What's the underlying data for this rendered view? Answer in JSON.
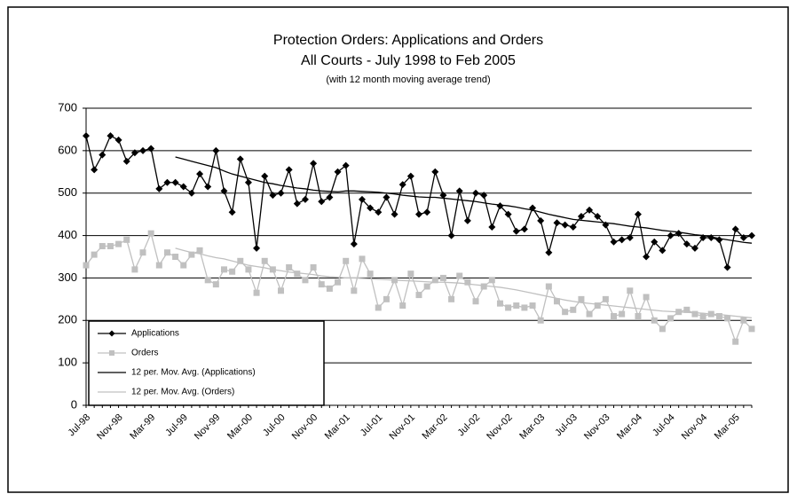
{
  "chart_data": {
    "type": "line",
    "title": "Protection Orders: Applications and Orders",
    "subtitle": "All Courts - July 1998 to Feb 2005",
    "note": "(with 12 month moving average trend)",
    "categories": [
      "Jul-98",
      null,
      null,
      null,
      "Nov-98",
      null,
      null,
      null,
      "Mar-99",
      null,
      null,
      null,
      "Jul-99",
      null,
      null,
      null,
      "Nov-99",
      null,
      null,
      null,
      "Mar-00",
      null,
      null,
      null,
      "Jul-00",
      null,
      null,
      null,
      "Nov-00",
      null,
      null,
      null,
      "Mar-01",
      null,
      null,
      null,
      "Jul-01",
      null,
      null,
      null,
      "Nov-01",
      null,
      null,
      null,
      "Mar-02",
      null,
      null,
      null,
      "Jul-02",
      null,
      null,
      null,
      "Nov-02",
      null,
      null,
      null,
      "Mar-03",
      null,
      null,
      null,
      "Jul-03",
      null,
      null,
      null,
      "Nov-03",
      null,
      null,
      null,
      "Mar-04",
      null,
      null,
      null,
      "Jul-04",
      null,
      null,
      null,
      "Nov-04",
      null,
      null,
      null,
      "Mar-05",
      null,
      null
    ],
    "series": [
      {
        "name": "Applications",
        "color": "#000000",
        "marker": "diamond",
        "values": [
          635,
          555,
          590,
          635,
          625,
          575,
          595,
          600,
          605,
          510,
          525,
          525,
          515,
          500,
          545,
          515,
          600,
          505,
          455,
          580,
          525,
          370,
          540,
          495,
          500,
          555,
          475,
          485,
          570,
          480,
          490,
          550,
          565,
          380,
          485,
          465,
          455,
          490,
          450,
          520,
          540,
          450,
          455,
          550,
          495,
          400,
          505,
          435,
          500,
          495,
          420,
          470,
          450,
          410,
          415,
          465,
          435,
          360,
          430,
          425,
          420,
          445,
          460,
          445,
          425,
          385,
          390,
          395,
          450,
          350,
          385,
          365,
          400,
          405,
          380,
          370,
          395,
          395,
          390,
          325,
          415,
          395,
          400
        ]
      },
      {
        "name": "Orders",
        "color": "#c0c0c0",
        "marker": "square",
        "values": [
          330,
          355,
          375,
          375,
          380,
          390,
          320,
          360,
          405,
          330,
          360,
          350,
          330,
          355,
          365,
          295,
          285,
          320,
          315,
          340,
          320,
          265,
          340,
          320,
          270,
          325,
          310,
          295,
          325,
          285,
          275,
          290,
          340,
          270,
          345,
          310,
          230,
          250,
          295,
          235,
          310,
          260,
          280,
          295,
          300,
          250,
          305,
          290,
          245,
          280,
          295,
          240,
          230,
          235,
          230,
          235,
          200,
          280,
          245,
          220,
          225,
          250,
          215,
          235,
          250,
          210,
          215,
          270,
          210,
          255,
          200,
          180,
          205,
          220,
          225,
          215,
          210,
          215,
          210,
          205,
          150,
          200,
          180
        ]
      },
      {
        "name": "12 per. Mov. Avg. (Applications)",
        "color": "#000000",
        "values": [
          null,
          null,
          null,
          null,
          null,
          null,
          null,
          null,
          null,
          null,
          null,
          585,
          580,
          575,
          570,
          565,
          560,
          552,
          545,
          540,
          535,
          530,
          525,
          522,
          518,
          515,
          512,
          510,
          507,
          505,
          504,
          503,
          505,
          505,
          504,
          503,
          502,
          500,
          498,
          495,
          493,
          491,
          490,
          490,
          488,
          486,
          484,
          482,
          480,
          477,
          474,
          472,
          470,
          467,
          463,
          460,
          455,
          450,
          446,
          442,
          438,
          436,
          434,
          432,
          430,
          428,
          425,
          422,
          420,
          418,
          415,
          412,
          410,
          408,
          405,
          402,
          400,
          397,
          393,
          390,
          387,
          384,
          382
        ]
      },
      {
        "name": "12 per. Mov. Avg. (Orders)",
        "color": "#c0c0c0",
        "values": [
          null,
          null,
          null,
          null,
          null,
          null,
          null,
          null,
          null,
          null,
          null,
          370,
          365,
          360,
          357,
          352,
          348,
          345,
          340,
          335,
          330,
          327,
          324,
          320,
          317,
          314,
          312,
          310,
          308,
          305,
          303,
          302,
          300,
          300,
          299,
          298,
          297,
          296,
          295,
          294,
          293,
          292,
          291,
          290,
          290,
          289,
          288,
          286,
          284,
          282,
          280,
          278,
          275,
          272,
          268,
          264,
          260,
          256,
          252,
          248,
          245,
          242,
          240,
          238,
          236,
          234,
          232,
          230,
          228,
          226,
          224,
          222,
          221,
          220,
          219,
          218,
          217,
          215,
          214,
          212,
          210,
          208,
          206
        ]
      }
    ],
    "ylim": [
      0,
      700
    ],
    "yticks": [
      0,
      100,
      200,
      300,
      400,
      500,
      600,
      700
    ],
    "grid": true,
    "legend": "lower left"
  }
}
